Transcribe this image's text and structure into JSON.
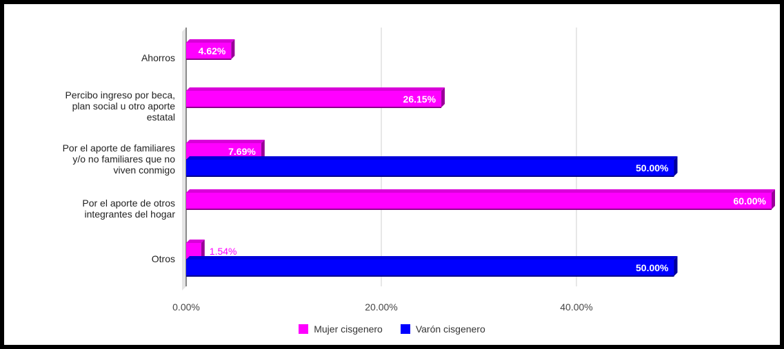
{
  "chart_data": {
    "type": "bar",
    "orientation": "horizontal",
    "categories": [
      "Ahorros",
      "Percibo ingreso por beca, plan social u otro aporte estatal",
      "Por el aporte de familiares y/o no familiares que no viven conmigo",
      "Por el aporte de otros integrantes del hogar",
      "Otros"
    ],
    "category_lines": [
      [
        "Ahorros"
      ],
      [
        "Percibo ingreso por beca,",
        "plan social u otro aporte",
        "estatal"
      ],
      [
        "Por el aporte de familiares",
        "y/o no familiares que no",
        "viven conmigo"
      ],
      [
        "Por el aporte de otros",
        "integrantes del hogar"
      ],
      [
        "Otros"
      ]
    ],
    "series": [
      {
        "name": "Mujer cisgenero",
        "color": "#ff00ff",
        "values": [
          4.62,
          26.15,
          7.69,
          60.0,
          1.54
        ],
        "labels": [
          "4.62%",
          "26.15%",
          "7.69%",
          "60.00%",
          "1.54%"
        ]
      },
      {
        "name": "Varón cisgenero",
        "color": "#0000ff",
        "values": [
          null,
          null,
          50.0,
          null,
          50.0
        ],
        "labels": [
          null,
          null,
          "50.00%",
          null,
          "50.00%"
        ]
      }
    ],
    "xlim": [
      0,
      60
    ],
    "ticks": [
      0,
      20,
      40
    ],
    "tick_labels": [
      "0.00%",
      "20.00%",
      "40.00%"
    ],
    "grid": true,
    "legend_position": "bottom",
    "bar_style": "3d"
  },
  "legend": {
    "mujer": "Mujer cisgenero",
    "varon": "Varón cisgenero"
  }
}
